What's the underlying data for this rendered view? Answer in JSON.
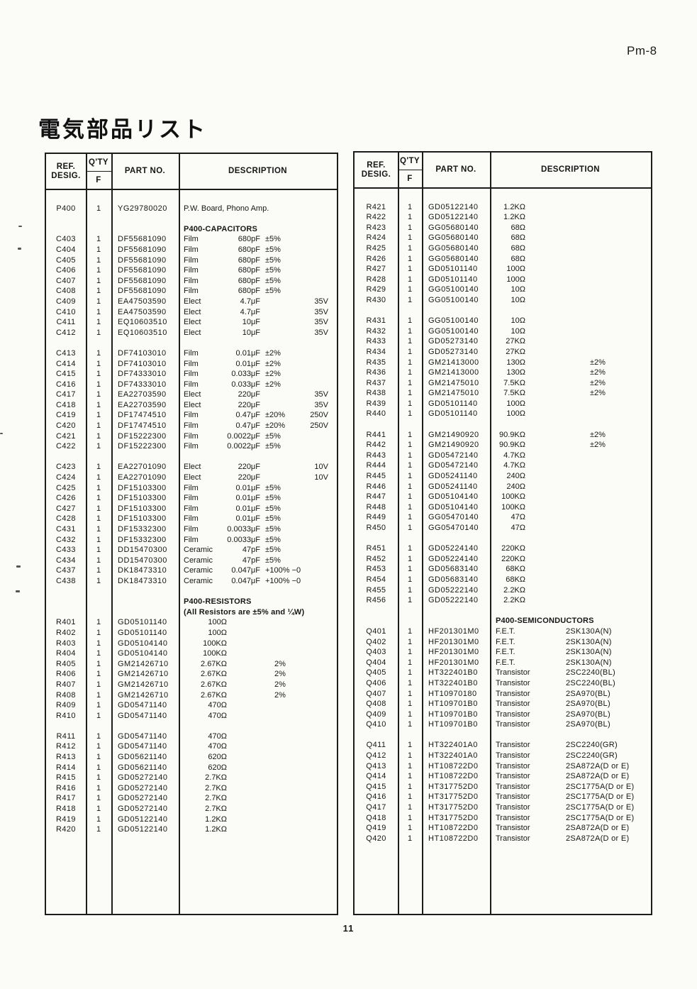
{
  "page": {
    "corner_label": "Pm-8",
    "title": "電気部品リスト",
    "page_number": "11"
  },
  "columns": {
    "ref_line1": "REF.",
    "ref_line2": "DESIG.",
    "qty": "Q'TY",
    "qty_sub": "F",
    "part": "PART NO.",
    "desc": "DESCRIPTION"
  },
  "left_table": {
    "rows": [
      {},
      {
        "ref": "P400",
        "qty": "1",
        "part": "YG29780020",
        "text": "P.W. Board, Phono Amp."
      },
      {},
      {
        "section": "P400-CAPACITORS"
      },
      {
        "ref": "C403",
        "qty": "1",
        "part": "DF55681090",
        "type": "Film",
        "value": "680pF",
        "tol": "±5%"
      },
      {
        "ref": "C404",
        "qty": "1",
        "part": "DF55681090",
        "type": "Film",
        "value": "680pF",
        "tol": "±5%"
      },
      {
        "ref": "C405",
        "qty": "1",
        "part": "DF55681090",
        "type": "Film",
        "value": "680pF",
        "tol": "±5%"
      },
      {
        "ref": "C406",
        "qty": "1",
        "part": "DF55681090",
        "type": "Film",
        "value": "680pF",
        "tol": "±5%"
      },
      {
        "ref": "C407",
        "qty": "1",
        "part": "DF55681090",
        "type": "Film",
        "value": "680pF",
        "tol": "±5%"
      },
      {
        "ref": "C408",
        "qty": "1",
        "part": "DF55681090",
        "type": "Film",
        "value": "680pF",
        "tol": "±5%"
      },
      {
        "ref": "C409",
        "qty": "1",
        "part": "EA47503590",
        "type": "Elect",
        "value": "4.7μF",
        "volt": "35V"
      },
      {
        "ref": "C410",
        "qty": "1",
        "part": "EA47503590",
        "type": "Elect",
        "value": "4.7μF",
        "volt": "35V"
      },
      {
        "ref": "C411",
        "qty": "1",
        "part": "EQ10603510",
        "type": "Elect",
        "value": "10μF",
        "volt": "35V"
      },
      {
        "ref": "C412",
        "qty": "1",
        "part": "EQ10603510",
        "type": "Elect",
        "value": "10μF",
        "volt": "35V"
      },
      {},
      {
        "ref": "C413",
        "qty": "1",
        "part": "DF74103010",
        "type": "Film",
        "value": "0.01μF",
        "tol": "±2%"
      },
      {
        "ref": "C414",
        "qty": "1",
        "part": "DF74103010",
        "type": "Film",
        "value": "0.01μF",
        "tol": "±2%"
      },
      {
        "ref": "C415",
        "qty": "1",
        "part": "DF74333010",
        "type": "Film",
        "value": "0.033μF",
        "tol": "±2%"
      },
      {
        "ref": "C416",
        "qty": "1",
        "part": "DF74333010",
        "type": "Film",
        "value": "0.033μF",
        "tol": "±2%"
      },
      {
        "ref": "C417",
        "qty": "1",
        "part": "EA22703590",
        "type": "Elect",
        "value": "220μF",
        "volt": "35V"
      },
      {
        "ref": "C418",
        "qty": "1",
        "part": "EA22703590",
        "type": "Elect",
        "value": "220μF",
        "volt": "35V"
      },
      {
        "ref": "C419",
        "qty": "1",
        "part": "DF17474510",
        "type": "Film",
        "value": "0.47μF",
        "tol": "±20%",
        "volt": "250V"
      },
      {
        "ref": "C420",
        "qty": "1",
        "part": "DF17474510",
        "type": "Film",
        "value": "0.47μF",
        "tol": "±20%",
        "volt": "250V"
      },
      {
        "ref": "C421",
        "qty": "1",
        "part": "DF15222300",
        "type": "Film",
        "value": "0.0022μF",
        "tol": "±5%"
      },
      {
        "ref": "C422",
        "qty": "1",
        "part": "DF15222300",
        "type": "Film",
        "value": "0.0022μF",
        "tol": "±5%"
      },
      {},
      {
        "ref": "C423",
        "qty": "1",
        "part": "EA22701090",
        "type": "Elect",
        "value": "220μF",
        "volt": "10V"
      },
      {
        "ref": "C424",
        "qty": "1",
        "part": "EA22701090",
        "type": "Elect",
        "value": "220μF",
        "volt": "10V"
      },
      {
        "ref": "C425",
        "qty": "1",
        "part": "DF15103300",
        "type": "Film",
        "value": "0.01μF",
        "tol": "±5%"
      },
      {
        "ref": "C426",
        "qty": "1",
        "part": "DF15103300",
        "type": "Film",
        "value": "0.01μF",
        "tol": "±5%"
      },
      {
        "ref": "C427",
        "qty": "1",
        "part": "DF15103300",
        "type": "Film",
        "value": "0.01μF",
        "tol": "±5%"
      },
      {
        "ref": "C428",
        "qty": "1",
        "part": "DF15103300",
        "type": "Film",
        "value": "0.01μF",
        "tol": "±5%"
      },
      {
        "ref": "C431",
        "qty": "1",
        "part": "DF15332300",
        "type": "Film",
        "value": "0.0033μF",
        "tol": "±5%"
      },
      {
        "ref": "C432",
        "qty": "1",
        "part": "DF15332300",
        "type": "Film",
        "value": "0.0033μF",
        "tol": "±5%"
      },
      {
        "ref": "C433",
        "qty": "1",
        "part": "DD15470300",
        "type": "Ceramic",
        "value": "47pF",
        "tol": "±5%"
      },
      {
        "ref": "C434",
        "qty": "1",
        "part": "DD15470300",
        "type": "Ceramic",
        "value": "47pF",
        "tol": "±5%"
      },
      {
        "ref": "C437",
        "qty": "1",
        "part": "DK18473310",
        "type": "Ceramic",
        "value": "0.047μF",
        "tol": "+100% −0"
      },
      {
        "ref": "C438",
        "qty": "1",
        "part": "DK18473310",
        "type": "Ceramic",
        "value": "0.047μF",
        "tol": "+100% −0"
      },
      {},
      {
        "section": "P400-RESISTORS"
      },
      {
        "section": "(All Resistors are ±5% and ¼W)"
      },
      {
        "ref": "R401",
        "qty": "1",
        "part": "GD05101140",
        "rval": "100Ω"
      },
      {
        "ref": "R402",
        "qty": "1",
        "part": "GD05101140",
        "rval": "100Ω"
      },
      {
        "ref": "R403",
        "qty": "1",
        "part": "GD05104140",
        "rval": "100KΩ"
      },
      {
        "ref": "R404",
        "qty": "1",
        "part": "GD05104140",
        "rval": "100KΩ"
      },
      {
        "ref": "R405",
        "qty": "1",
        "part": "GM21426710",
        "rval": "2.67KΩ",
        "tol2": "2%"
      },
      {
        "ref": "R406",
        "qty": "1",
        "part": "GM21426710",
        "rval": "2.67KΩ",
        "tol2": "2%"
      },
      {
        "ref": "R407",
        "qty": "1",
        "part": "GM21426710",
        "rval": "2.67KΩ",
        "tol2": "2%"
      },
      {
        "ref": "R408",
        "qty": "1",
        "part": "GM21426710",
        "rval": "2.67KΩ",
        "tol2": "2%"
      },
      {
        "ref": "R409",
        "qty": "1",
        "part": "GD05471140",
        "rval": "470Ω"
      },
      {
        "ref": "R410",
        "qty": "1",
        "part": "GD05471140",
        "rval": "470Ω"
      },
      {},
      {
        "ref": "R411",
        "qty": "1",
        "part": "GD05471140",
        "rval": "470Ω"
      },
      {
        "ref": "R412",
        "qty": "1",
        "part": "GD05471140",
        "rval": "470Ω"
      },
      {
        "ref": "R413",
        "qty": "1",
        "part": "GD05621140",
        "rval": "620Ω"
      },
      {
        "ref": "R414",
        "qty": "1",
        "part": "GD05621140",
        "rval": "620Ω"
      },
      {
        "ref": "R415",
        "qty": "1",
        "part": "GD05272140",
        "rval": "2.7KΩ"
      },
      {
        "ref": "R416",
        "qty": "1",
        "part": "GD05272140",
        "rval": "2.7KΩ"
      },
      {
        "ref": "R417",
        "qty": "1",
        "part": "GD05272140",
        "rval": "2.7KΩ"
      },
      {
        "ref": "R418",
        "qty": "1",
        "part": "GD05272140",
        "rval": "2.7KΩ"
      },
      {
        "ref": "R419",
        "qty": "1",
        "part": "GD05122140",
        "rval": "1.2KΩ"
      },
      {
        "ref": "R420",
        "qty": "1",
        "part": "GD05122140",
        "rval": "1.2KΩ"
      }
    ]
  },
  "right_table": {
    "rows": [
      {},
      {
        "ref": "R421",
        "qty": "1",
        "part": "GD05122140",
        "rval": "1.2KΩ"
      },
      {
        "ref": "R422",
        "qty": "1",
        "part": "GD05122140",
        "rval": "1.2KΩ"
      },
      {
        "ref": "R423",
        "qty": "1",
        "part": "GG05680140",
        "rval": "68Ω"
      },
      {
        "ref": "R424",
        "qty": "1",
        "part": "GG05680140",
        "rval": "68Ω"
      },
      {
        "ref": "R425",
        "qty": "1",
        "part": "GG05680140",
        "rval": "68Ω"
      },
      {
        "ref": "R426",
        "qty": "1",
        "part": "GG05680140",
        "rval": "68Ω"
      },
      {
        "ref": "R427",
        "qty": "1",
        "part": "GD05101140",
        "rval": "100Ω"
      },
      {
        "ref": "R428",
        "qty": "1",
        "part": "GD05101140",
        "rval": "100Ω"
      },
      {
        "ref": "R429",
        "qty": "1",
        "part": "GG05100140",
        "rval": "10Ω"
      },
      {
        "ref": "R430",
        "qty": "1",
        "part": "GG05100140",
        "rval": "10Ω"
      },
      {},
      {
        "ref": "R431",
        "qty": "1",
        "part": "GG05100140",
        "rval": "10Ω"
      },
      {
        "ref": "R432",
        "qty": "1",
        "part": "GG05100140",
        "rval": "10Ω"
      },
      {
        "ref": "R433",
        "qty": "1",
        "part": "GD05273140",
        "rval": "27KΩ"
      },
      {
        "ref": "R434",
        "qty": "1",
        "part": "GD05273140",
        "rval": "27KΩ"
      },
      {
        "ref": "R435",
        "qty": "1",
        "part": "GM21413000",
        "rval": "130Ω",
        "tol": "±2%"
      },
      {
        "ref": "R436",
        "qty": "1",
        "part": "GM21413000",
        "rval": "130Ω",
        "tol": "±2%"
      },
      {
        "ref": "R437",
        "qty": "1",
        "part": "GM21475010",
        "rval": "7.5KΩ",
        "tol": "±2%"
      },
      {
        "ref": "R438",
        "qty": "1",
        "part": "GM21475010",
        "rval": "7.5KΩ",
        "tol": "±2%"
      },
      {
        "ref": "R439",
        "qty": "1",
        "part": "GD05101140",
        "rval": "100Ω"
      },
      {
        "ref": "R440",
        "qty": "1",
        "part": "GD05101140",
        "rval": "100Ω"
      },
      {},
      {
        "ref": "R441",
        "qty": "1",
        "part": "GM21490920",
        "rval": "90.9KΩ",
        "tol": "±2%"
      },
      {
        "ref": "R442",
        "qty": "1",
        "part": "GM21490920",
        "rval": "90.9KΩ",
        "tol": "±2%"
      },
      {
        "ref": "R443",
        "qty": "1",
        "part": "GD05472140",
        "rval": "4.7KΩ"
      },
      {
        "ref": "R444",
        "qty": "1",
        "part": "GD05472140",
        "rval": "4.7KΩ"
      },
      {
        "ref": "R445",
        "qty": "1",
        "part": "GD05241140",
        "rval": "240Ω"
      },
      {
        "ref": "R446",
        "qty": "1",
        "part": "GD05241140",
        "rval": "240Ω"
      },
      {
        "ref": "R447",
        "qty": "1",
        "part": "GD05104140",
        "rval": "100KΩ"
      },
      {
        "ref": "R448",
        "qty": "1",
        "part": "GD05104140",
        "rval": "100KΩ"
      },
      {
        "ref": "R449",
        "qty": "1",
        "part": "GG05470140",
        "rval": "47Ω"
      },
      {
        "ref": "R450",
        "qty": "1",
        "part": "GG05470140",
        "rval": "47Ω"
      },
      {},
      {
        "ref": "R451",
        "qty": "1",
        "part": "GD05224140",
        "rval": "220KΩ"
      },
      {
        "ref": "R452",
        "qty": "1",
        "part": "GD05224140",
        "rval": "220KΩ"
      },
      {
        "ref": "R453",
        "qty": "1",
        "part": "GD05683140",
        "rval": "68KΩ"
      },
      {
        "ref": "R454",
        "qty": "1",
        "part": "GD05683140",
        "rval": "68KΩ"
      },
      {
        "ref": "R455",
        "qty": "1",
        "part": "GD05222140",
        "rval": "2.2KΩ"
      },
      {
        "ref": "R456",
        "qty": "1",
        "part": "GD05222140",
        "rval": "2.2KΩ"
      },
      {},
      {
        "section": "P400-SEMICONDUCTORS"
      },
      {
        "ref": "Q401",
        "qty": "1",
        "part": "HF201301M0",
        "type": "F.E.T.",
        "name": "2SK130A(N)"
      },
      {
        "ref": "Q402",
        "qty": "1",
        "part": "HF201301M0",
        "type": "F.E.T.",
        "name": "2SK130A(N)"
      },
      {
        "ref": "Q403",
        "qty": "1",
        "part": "HF201301M0",
        "type": "F.E.T.",
        "name": "2SK130A(N)"
      },
      {
        "ref": "Q404",
        "qty": "1",
        "part": "HF201301M0",
        "type": "F.E.T.",
        "name": "2SK130A(N)"
      },
      {
        "ref": "Q405",
        "qty": "1",
        "part": "HT322401B0",
        "type": "Transistor",
        "name": "2SC2240(BL)"
      },
      {
        "ref": "Q406",
        "qty": "1",
        "part": "HT322401B0",
        "type": "Transistor",
        "name": "2SC2240(BL)"
      },
      {
        "ref": "Q407",
        "qty": "1",
        "part": "HT10970180",
        "type": "Transistor",
        "name": "2SA970(BL)"
      },
      {
        "ref": "Q408",
        "qty": "1",
        "part": "HT109701B0",
        "type": "Transistor",
        "name": "2SA970(BL)"
      },
      {
        "ref": "Q409",
        "qty": "1",
        "part": "HT109701B0",
        "type": "Transistor",
        "name": "2SA970(BL)"
      },
      {
        "ref": "Q410",
        "qty": "1",
        "part": "HT109701B0",
        "type": "Transistor",
        "name": "2SA970(BL)"
      },
      {},
      {
        "ref": "Q411",
        "qty": "1",
        "part": "HT322401A0",
        "type": "Transistor",
        "name": "2SC2240(GR)"
      },
      {
        "ref": "Q412",
        "qty": "1",
        "part": "HT322401A0",
        "type": "Transistor",
        "name": "2SC2240(GR)"
      },
      {
        "ref": "Q413",
        "qty": "1",
        "part": "HT108722D0",
        "type": "Transistor",
        "name": "2SA872A(D or E)"
      },
      {
        "ref": "Q414",
        "qty": "1",
        "part": "HT108722D0",
        "type": "Transistor",
        "name": "2SA872A(D or E)"
      },
      {
        "ref": "Q415",
        "qty": "1",
        "part": "HT317752D0",
        "type": "Transistor",
        "name": "2SC1775A(D or E)"
      },
      {
        "ref": "Q416",
        "qty": "1",
        "part": "HT317752D0",
        "type": "Transistor",
        "name": "2SC1775A(D or E)"
      },
      {
        "ref": "Q417",
        "qty": "1",
        "part": "HT317752D0",
        "type": "Transistor",
        "name": "2SC1775A(D or E)"
      },
      {
        "ref": "Q418",
        "qty": "1",
        "part": "HT317752D0",
        "type": "Transistor",
        "name": "2SC1775A(D or E)"
      },
      {
        "ref": "Q419",
        "qty": "1",
        "part": "HT108722D0",
        "type": "Transistor",
        "name": "2SA872A(D or E)"
      },
      {
        "ref": "Q420",
        "qty": "1",
        "part": "HT108722D0",
        "type": "Transistor",
        "name": "2SA872A(D or E)"
      }
    ]
  }
}
